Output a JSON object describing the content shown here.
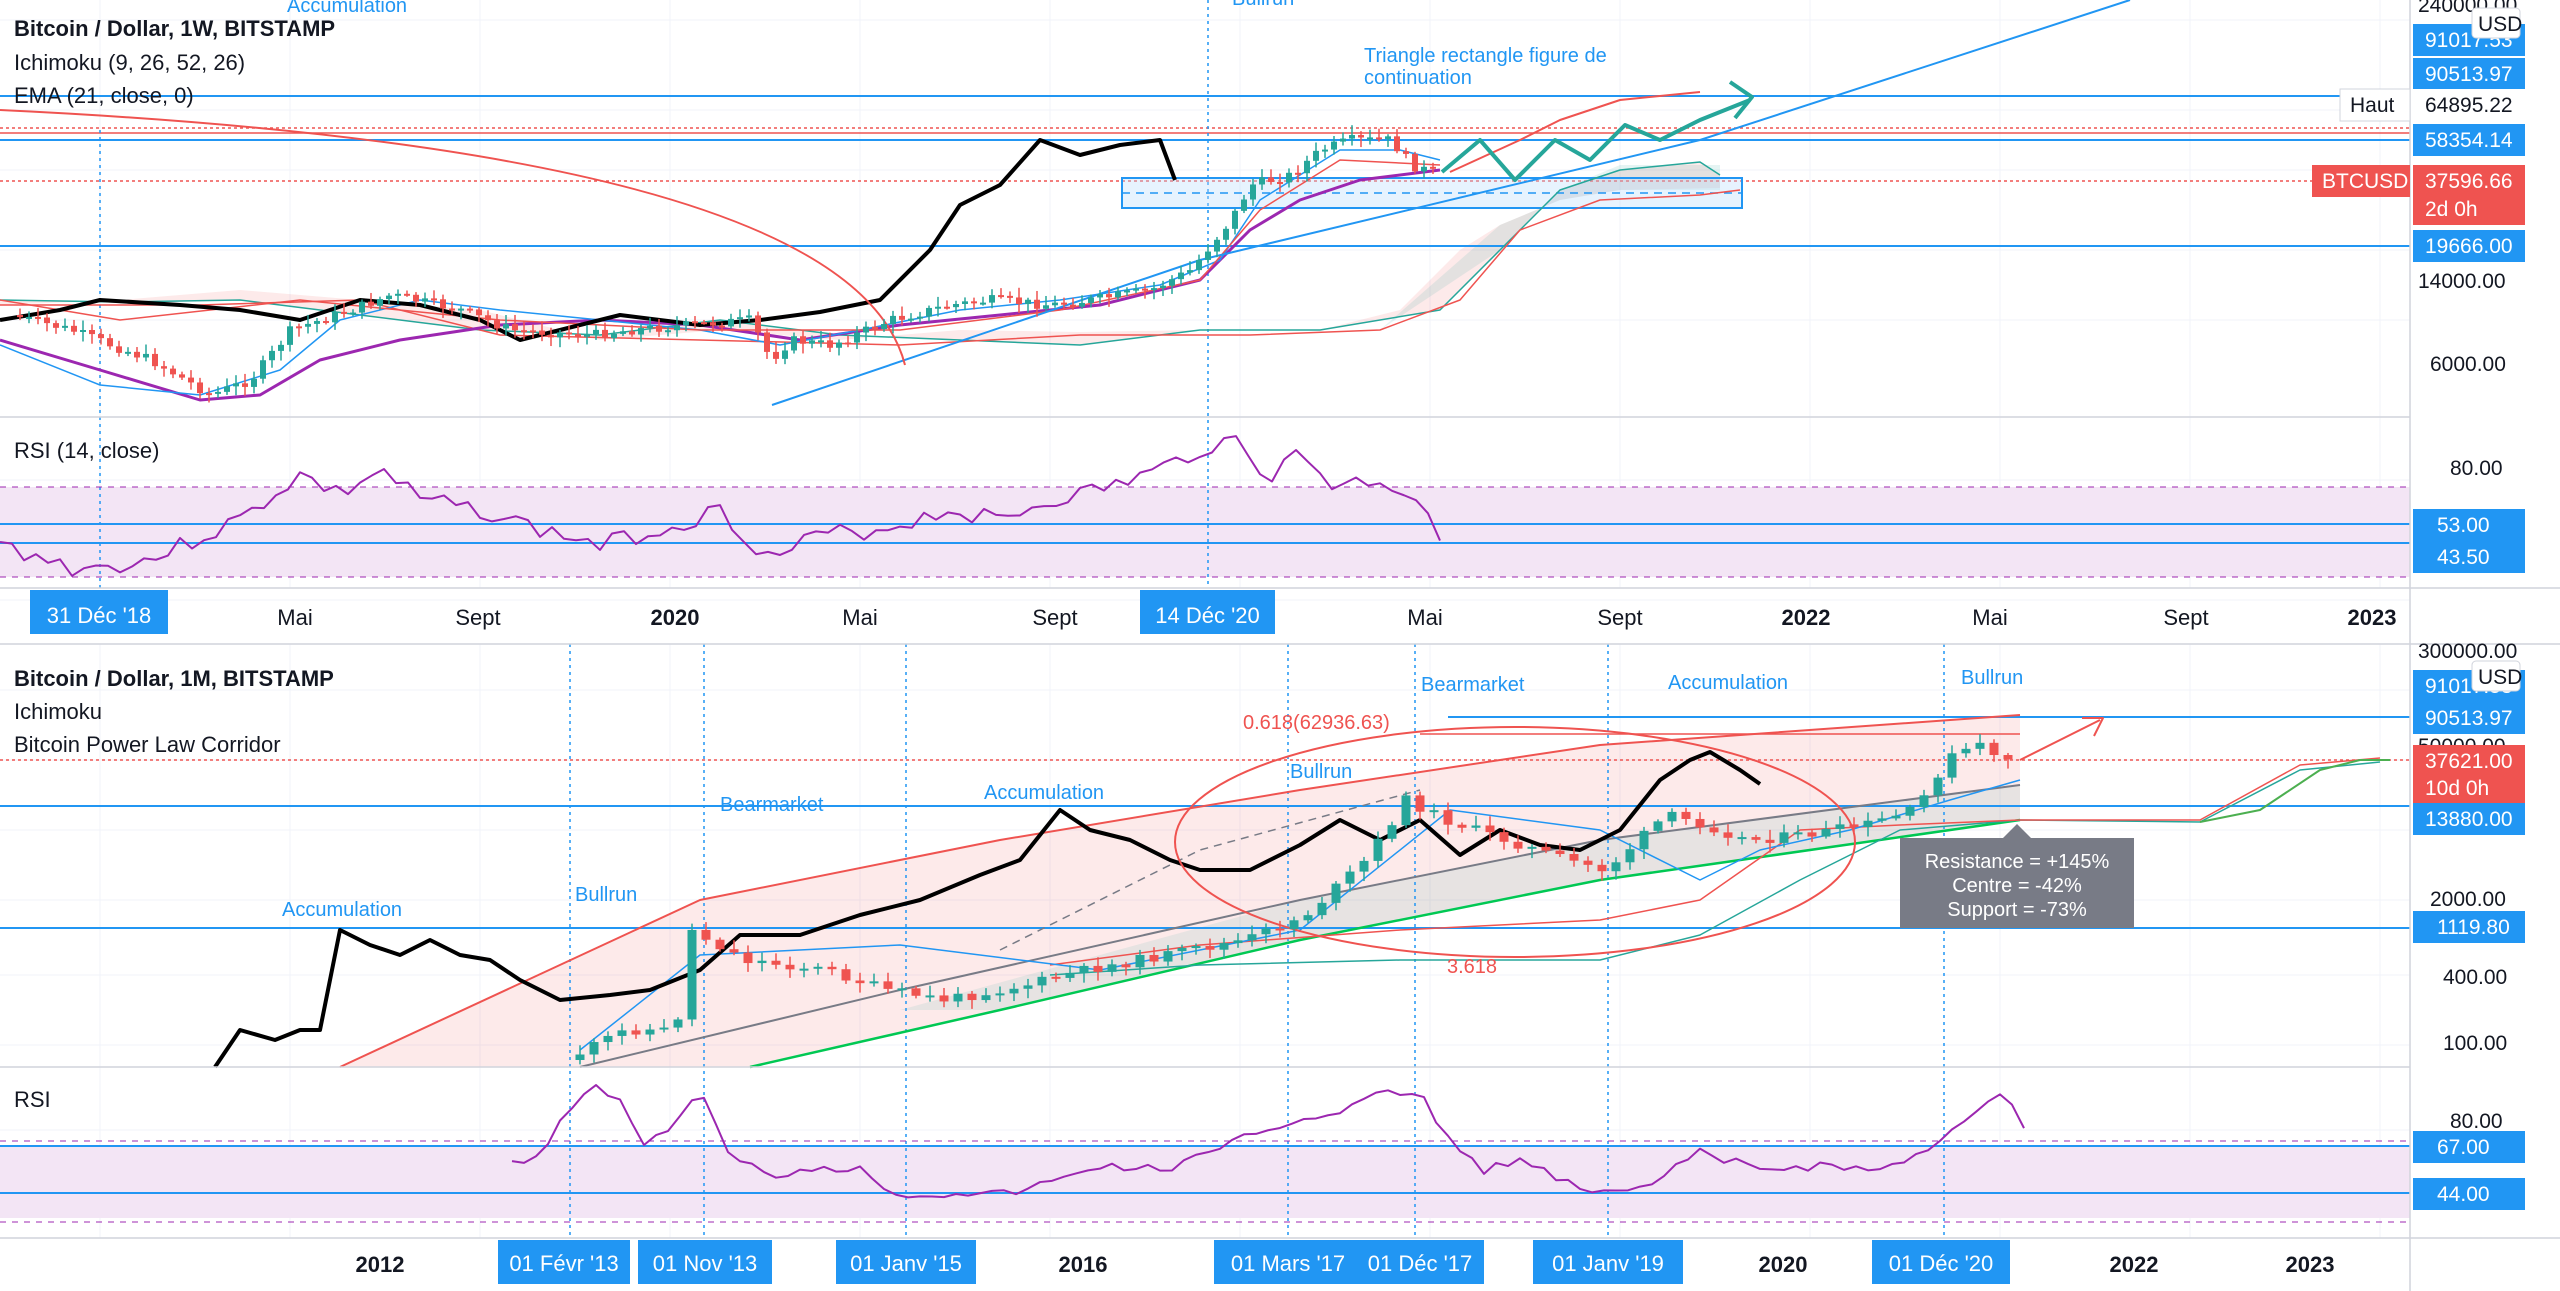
{
  "top": {
    "legend": [
      "Bitcoin / Dollar, 1W, BITSTAMP",
      "Ichimoku (9, 26, 52, 26)",
      "EMA (21, close, 0)"
    ],
    "currency": "USD",
    "annotations": [
      "Accumulation",
      "Bullrun",
      "Triangle rectangle figure de continuation"
    ],
    "haut_label": "Haut",
    "symbol_badge": "BTCUSD",
    "countdown": "2d 0h",
    "price_levels": [
      {
        "label": "240000.00",
        "kind": "tick"
      },
      {
        "label": "91017.53",
        "kind": "blue"
      },
      {
        "label": "90513.97",
        "kind": "blue"
      },
      {
        "label": "64895.22",
        "kind": "haut"
      },
      {
        "label": "58354.14",
        "kind": "blue"
      },
      {
        "label": "37596.66",
        "kind": "red"
      },
      {
        "label": "19666.00",
        "kind": "blue"
      },
      {
        "label": "14000.00",
        "kind": "tick"
      },
      {
        "label": "6000.00",
        "kind": "tick"
      }
    ],
    "rsi_label": "RSI (14, close)",
    "rsi_levels": [
      {
        "label": "80.00",
        "kind": "tick"
      },
      {
        "label": "53.00",
        "kind": "blue"
      },
      {
        "label": "43.50",
        "kind": "blue"
      }
    ],
    "time_axis": [
      "Mai",
      "Sept",
      "2020",
      "Mai",
      "Sept",
      "Mai",
      "Sept",
      "2022",
      "Mai",
      "Sept",
      "2023"
    ],
    "time_badges": [
      "31 Déc '18",
      "14 Déc '20"
    ]
  },
  "bottom": {
    "legend": [
      "Bitcoin / Dollar, 1M, BITSTAMP",
      "Ichimoku",
      "Bitcoin Power Law Corridor"
    ],
    "currency": "USD",
    "annotations": [
      "Accumulation",
      "Bullrun",
      "Bearmarket",
      "Accumulation",
      "Bullrun",
      "Bearmarket",
      "Accumulation",
      "Bullrun"
    ],
    "fib_labels": [
      "0.618(62936.63)",
      "3.618"
    ],
    "tooltip": [
      "Resistance = +145%",
      "Centre = -42%",
      "Support = -73%"
    ],
    "countdown": "10d 0h",
    "price_levels": [
      {
        "label": "300000.00",
        "kind": "tick"
      },
      {
        "label": "91017.53",
        "kind": "blue"
      },
      {
        "label": "90513.97",
        "kind": "blue"
      },
      {
        "label": "50000.00",
        "kind": "tick"
      },
      {
        "label": "37621.00",
        "kind": "red"
      },
      {
        "label": "13880.00",
        "kind": "blue"
      },
      {
        "label": "2000.00",
        "kind": "tick"
      },
      {
        "label": "1119.80",
        "kind": "blue"
      },
      {
        "label": "400.00",
        "kind": "tick"
      },
      {
        "label": "100.00",
        "kind": "tick"
      }
    ],
    "rsi_label": "RSI",
    "rsi_levels": [
      {
        "label": "80.00",
        "kind": "tick"
      },
      {
        "label": "67.00",
        "kind": "blue"
      },
      {
        "label": "44.00",
        "kind": "blue"
      }
    ],
    "time_axis": [
      "2012",
      "2016",
      "2020",
      "2022",
      "2023"
    ],
    "time_badges": [
      "01 Févr '13",
      "01 Nov '13",
      "01 Janv '15",
      "01 Mars '17",
      "01 Déc '17",
      "01 Janv '19",
      "01 Déc '20"
    ]
  },
  "colors": {
    "blue": "#2196f3",
    "red": "#ef5350",
    "green": "#26a69a",
    "purple": "#9c27b0",
    "black": "#000000",
    "teal": "#26a69a",
    "rsi_fill": "#f3e5f5"
  },
  "chart_data": [
    {
      "type": "candlestick",
      "title": "Bitcoin / Dollar, 1W, BITSTAMP",
      "y_scale": "log",
      "levels": [
        91017.53,
        90513.97,
        64895.22,
        58354.14,
        37596.66,
        19666.0
      ],
      "current_price": 37596.66,
      "annotations": [
        "Accumulation",
        "Bullrun",
        "Triangle rectangle figure de continuation"
      ]
    },
    {
      "type": "line",
      "title": "RSI (14, close)",
      "ylim": [
        0,
        100
      ],
      "levels": [
        80,
        53,
        43.5
      ]
    },
    {
      "type": "candlestick",
      "title": "Bitcoin / Dollar, 1M, BITSTAMP",
      "y_scale": "log",
      "levels": [
        91017.53,
        90513.97,
        37621.0,
        13880.0,
        1119.8
      ],
      "current_price": 37621.0,
      "fib_levels": [
        {
          "label": "0.618",
          "value": 62936.63
        },
        {
          "label": "3.618"
        }
      ]
    },
    {
      "type": "line",
      "title": "RSI",
      "ylim": [
        0,
        100
      ],
      "levels": [
        80,
        67,
        44
      ]
    }
  ]
}
